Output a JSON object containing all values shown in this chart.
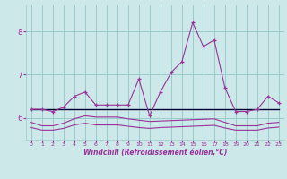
{
  "x": [
    0,
    1,
    2,
    3,
    4,
    5,
    6,
    7,
    8,
    9,
    10,
    11,
    12,
    13,
    14,
    15,
    16,
    17,
    18,
    19,
    20,
    21,
    22,
    23
  ],
  "line1": [
    6.2,
    6.2,
    6.15,
    6.25,
    6.5,
    6.6,
    6.3,
    6.3,
    6.3,
    6.3,
    6.9,
    6.05,
    6.6,
    7.05,
    7.3,
    8.2,
    7.65,
    7.8,
    6.7,
    6.15,
    6.15,
    6.2,
    6.5,
    6.35
  ],
  "line2_flat": [
    6.2,
    6.2,
    6.2,
    6.2,
    6.2,
    6.2,
    6.2,
    6.2,
    6.2,
    6.2,
    6.2,
    6.2,
    6.2,
    6.2,
    6.2,
    6.2,
    6.2,
    6.2,
    6.2,
    6.2,
    6.2,
    6.2,
    6.2,
    6.2
  ],
  "line3": [
    5.9,
    5.82,
    5.82,
    5.88,
    5.98,
    6.05,
    6.02,
    6.02,
    6.02,
    5.98,
    5.95,
    5.92,
    5.93,
    5.94,
    5.95,
    5.96,
    5.97,
    5.98,
    5.9,
    5.82,
    5.82,
    5.82,
    5.88,
    5.9
  ],
  "line4": [
    5.78,
    5.72,
    5.72,
    5.76,
    5.84,
    5.88,
    5.84,
    5.84,
    5.84,
    5.81,
    5.78,
    5.76,
    5.78,
    5.79,
    5.8,
    5.81,
    5.82,
    5.83,
    5.77,
    5.72,
    5.72,
    5.72,
    5.77,
    5.79
  ],
  "bg_color": "#cce8e8",
  "grid_color": "#99cccc",
  "line_color": "#993399",
  "flat_line_color": "#000033",
  "xlabel": "Windchill (Refroidissement éolien,°C)",
  "ylim": [
    5.5,
    8.6
  ],
  "xlim": [
    -0.5,
    23.5
  ],
  "yticks": [
    6,
    7,
    8
  ],
  "xticks": [
    0,
    1,
    2,
    3,
    4,
    5,
    6,
    7,
    8,
    9,
    10,
    11,
    12,
    13,
    14,
    15,
    16,
    17,
    18,
    19,
    20,
    21,
    22,
    23
  ]
}
